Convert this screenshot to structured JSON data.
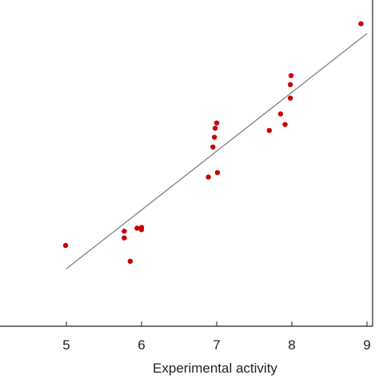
{
  "chart_data": {
    "type": "scatter",
    "title": "",
    "xlabel": "Experimental activity",
    "ylabel": "",
    "xlim": [
      4.2,
      9.0
    ],
    "ylim": [
      4.2,
      9.0
    ],
    "xticks": [
      5,
      6,
      7,
      8,
      9
    ],
    "xtick_labels": [
      "5",
      "6",
      "7",
      "8",
      "9"
    ],
    "grid": false,
    "legend": "none",
    "point_color": "#cc0000",
    "line_color": "#808080",
    "points": [
      {
        "x": 4.99,
        "y": 5.68
      },
      {
        "x": 5.77,
        "y": 5.87
      },
      {
        "x": 5.77,
        "y": 5.78
      },
      {
        "x": 5.85,
        "y": 5.47
      },
      {
        "x": 5.94,
        "y": 5.91
      },
      {
        "x": 6.0,
        "y": 5.92
      },
      {
        "x": 6.0,
        "y": 5.89
      },
      {
        "x": 6.89,
        "y": 6.59
      },
      {
        "x": 6.95,
        "y": 6.99
      },
      {
        "x": 6.97,
        "y": 7.12
      },
      {
        "x": 6.98,
        "y": 7.24
      },
      {
        "x": 7.0,
        "y": 7.31
      },
      {
        "x": 7.01,
        "y": 6.65
      },
      {
        "x": 7.7,
        "y": 7.21
      },
      {
        "x": 7.85,
        "y": 7.43
      },
      {
        "x": 7.91,
        "y": 7.29
      },
      {
        "x": 7.98,
        "y": 7.64
      },
      {
        "x": 7.98,
        "y": 7.82
      },
      {
        "x": 7.99,
        "y": 7.94
      },
      {
        "x": 8.92,
        "y": 8.63
      }
    ],
    "fit_line": {
      "x": [
        5.0,
        9.0
      ],
      "y": [
        5.37,
        8.5
      ]
    }
  }
}
